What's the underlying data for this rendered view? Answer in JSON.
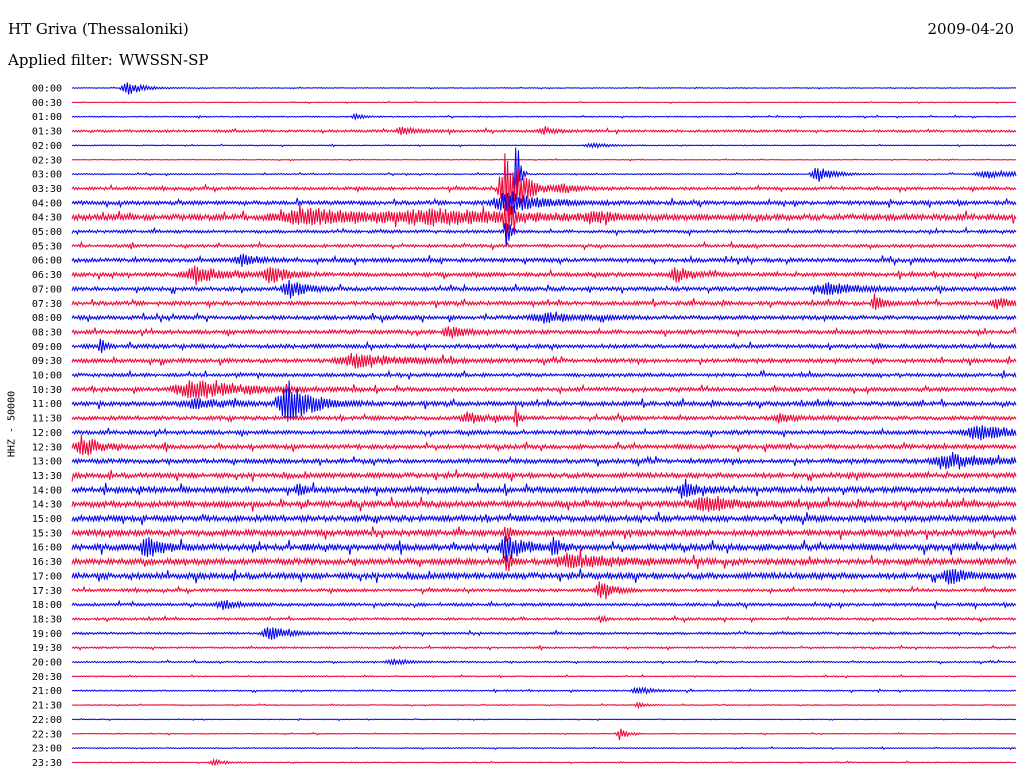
{
  "header": {
    "station": "HT Griva (Thessaloniki)",
    "date": "2009-04-20",
    "filter_label": "Applied filter:",
    "filter_value": "WWSSN-SP",
    "channel": "HHZ - 50000"
  },
  "colors": {
    "blue": "#0000ee",
    "red": "#ee0033"
  },
  "chart_data": {
    "type": "line",
    "title": "HT Griva (Thessaloniki)",
    "ylabel": "HHZ - 50000",
    "grid": false,
    "series": [
      {
        "time": "00:00",
        "color": "blue",
        "noise": 0.4,
        "events": [
          {
            "t": 0.06,
            "amp": 7,
            "w": 0.01
          }
        ]
      },
      {
        "time": "00:30",
        "color": "red",
        "noise": 0.4,
        "events": []
      },
      {
        "time": "01:00",
        "color": "blue",
        "noise": 0.6,
        "events": [
          {
            "t": 0.3,
            "amp": 3,
            "w": 0.005
          }
        ]
      },
      {
        "time": "01:30",
        "color": "red",
        "noise": 1.2,
        "events": [
          {
            "t": 0.35,
            "amp": 4,
            "w": 0.01
          },
          {
            "t": 0.5,
            "amp": 3,
            "w": 0.01
          }
        ]
      },
      {
        "time": "02:00",
        "color": "blue",
        "noise": 0.5,
        "events": [
          {
            "t": 0.55,
            "amp": 3,
            "w": 0.01
          }
        ]
      },
      {
        "time": "02:30",
        "color": "red",
        "noise": 0.4,
        "events": []
      },
      {
        "time": "03:00",
        "color": "blue",
        "noise": 0.6,
        "events": [
          {
            "t": 0.47,
            "amp": 60,
            "w": 0.002
          },
          {
            "t": 0.79,
            "amp": 8,
            "w": 0.01
          },
          {
            "t": 0.97,
            "amp": 4,
            "w": 0.02
          }
        ]
      },
      {
        "time": "03:30",
        "color": "red",
        "noise": 1.5,
        "events": [
          {
            "t": 0.46,
            "amp": 40,
            "w": 0.01
          },
          {
            "t": 0.52,
            "amp": 5,
            "w": 0.01
          }
        ]
      },
      {
        "time": "04:00",
        "color": "blue",
        "noise": 2,
        "events": [
          {
            "t": 0.46,
            "amp": 12,
            "w": 0.02
          }
        ]
      },
      {
        "time": "04:30",
        "color": "red",
        "noise": 3,
        "events": [
          {
            "t": 0.25,
            "amp": 8,
            "w": 0.05
          },
          {
            "t": 0.38,
            "amp": 6,
            "w": 0.06
          },
          {
            "t": 0.46,
            "amp": 30,
            "w": 0.003
          },
          {
            "t": 0.55,
            "amp": 6,
            "w": 0.01
          }
        ]
      },
      {
        "time": "05:00",
        "color": "blue",
        "noise": 1.5,
        "events": [
          {
            "t": 0.46,
            "amp": 25,
            "w": 0.002
          }
        ]
      },
      {
        "time": "05:30",
        "color": "red",
        "noise": 1.5,
        "events": []
      },
      {
        "time": "06:00",
        "color": "blue",
        "noise": 2,
        "events": [
          {
            "t": 0.18,
            "amp": 6,
            "w": 0.01
          }
        ]
      },
      {
        "time": "06:30",
        "color": "red",
        "noise": 2,
        "events": [
          {
            "t": 0.13,
            "amp": 8,
            "w": 0.02
          },
          {
            "t": 0.21,
            "amp": 9,
            "w": 0.01
          },
          {
            "t": 0.64,
            "amp": 8,
            "w": 0.01
          }
        ]
      },
      {
        "time": "07:00",
        "color": "blue",
        "noise": 2,
        "events": [
          {
            "t": 0.23,
            "amp": 10,
            "w": 0.01
          },
          {
            "t": 0.8,
            "amp": 6,
            "w": 0.02
          }
        ]
      },
      {
        "time": "07:30",
        "color": "red",
        "noise": 2,
        "events": [
          {
            "t": 0.85,
            "amp": 10,
            "w": 0.005
          },
          {
            "t": 0.98,
            "amp": 5,
            "w": 0.01
          }
        ]
      },
      {
        "time": "08:00",
        "color": "blue",
        "noise": 2,
        "events": [
          {
            "t": 0.5,
            "amp": 5,
            "w": 0.02
          }
        ]
      },
      {
        "time": "08:30",
        "color": "red",
        "noise": 2,
        "events": [
          {
            "t": 0.4,
            "amp": 6,
            "w": 0.01
          }
        ]
      },
      {
        "time": "09:00",
        "color": "blue",
        "noise": 2,
        "events": [
          {
            "t": 0.03,
            "amp": 8,
            "w": 0.003
          }
        ]
      },
      {
        "time": "09:30",
        "color": "red",
        "noise": 2,
        "events": [
          {
            "t": 0.3,
            "amp": 7,
            "w": 0.03
          }
        ]
      },
      {
        "time": "10:00",
        "color": "blue",
        "noise": 1.8,
        "events": []
      },
      {
        "time": "10:30",
        "color": "red",
        "noise": 2,
        "events": [
          {
            "t": 0.13,
            "amp": 10,
            "w": 0.03
          }
        ]
      },
      {
        "time": "11:00",
        "color": "blue",
        "noise": 2.2,
        "events": [
          {
            "t": 0.23,
            "amp": 22,
            "w": 0.015
          },
          {
            "t": 0.13,
            "amp": 5,
            "w": 0.02
          }
        ]
      },
      {
        "time": "11:30",
        "color": "red",
        "noise": 2,
        "events": [
          {
            "t": 0.42,
            "amp": 6,
            "w": 0.01
          },
          {
            "t": 0.47,
            "amp": 12,
            "w": 0.002
          },
          {
            "t": 0.75,
            "amp": 4,
            "w": 0.01
          }
        ]
      },
      {
        "time": "12:00",
        "color": "blue",
        "noise": 2,
        "events": [
          {
            "t": 0.96,
            "amp": 8,
            "w": 0.02
          }
        ]
      },
      {
        "time": "12:30",
        "color": "red",
        "noise": 2.2,
        "events": [
          {
            "t": 0.01,
            "amp": 12,
            "w": 0.01
          }
        ]
      },
      {
        "time": "13:00",
        "color": "blue",
        "noise": 2.2,
        "events": [
          {
            "t": 0.93,
            "amp": 6,
            "w": 0.03
          }
        ]
      },
      {
        "time": "13:30",
        "color": "red",
        "noise": 2.5,
        "events": []
      },
      {
        "time": "14:00",
        "color": "blue",
        "noise": 2.8,
        "events": [
          {
            "t": 0.24,
            "amp": 7,
            "w": 0.005
          },
          {
            "t": 0.65,
            "amp": 6,
            "w": 0.01
          }
        ]
      },
      {
        "time": "14:30",
        "color": "red",
        "noise": 3,
        "events": [
          {
            "t": 0.67,
            "amp": 7,
            "w": 0.02
          }
        ]
      },
      {
        "time": "15:00",
        "color": "blue",
        "noise": 3,
        "events": []
      },
      {
        "time": "15:30",
        "color": "red",
        "noise": 3,
        "events": [
          {
            "t": 0.46,
            "amp": 10,
            "w": 0.003
          }
        ]
      },
      {
        "time": "16:00",
        "color": "blue",
        "noise": 3.2,
        "events": [
          {
            "t": 0.08,
            "amp": 10,
            "w": 0.01
          },
          {
            "t": 0.46,
            "amp": 14,
            "w": 0.01
          },
          {
            "t": 0.51,
            "amp": 8,
            "w": 0.005
          }
        ]
      },
      {
        "time": "16:30",
        "color": "red",
        "noise": 3,
        "events": [
          {
            "t": 0.46,
            "amp": 14,
            "w": 0.003
          },
          {
            "t": 0.53,
            "amp": 6,
            "w": 0.03
          }
        ]
      },
      {
        "time": "17:00",
        "color": "blue",
        "noise": 3,
        "events": [
          {
            "t": 0.93,
            "amp": 9,
            "w": 0.01
          }
        ]
      },
      {
        "time": "17:30",
        "color": "red",
        "noise": 1.5,
        "events": [
          {
            "t": 0.56,
            "amp": 10,
            "w": 0.008
          }
        ]
      },
      {
        "time": "18:00",
        "color": "blue",
        "noise": 1.5,
        "events": [
          {
            "t": 0.16,
            "amp": 5,
            "w": 0.01
          }
        ]
      },
      {
        "time": "18:30",
        "color": "red",
        "noise": 1.2,
        "events": [
          {
            "t": 0.56,
            "amp": 4,
            "w": 0.003
          }
        ]
      },
      {
        "time": "19:00",
        "color": "blue",
        "noise": 1.2,
        "events": [
          {
            "t": 0.21,
            "amp": 7,
            "w": 0.012
          }
        ]
      },
      {
        "time": "19:30",
        "color": "red",
        "noise": 0.9,
        "events": []
      },
      {
        "time": "20:00",
        "color": "blue",
        "noise": 0.8,
        "events": [
          {
            "t": 0.34,
            "amp": 3,
            "w": 0.01
          }
        ]
      },
      {
        "time": "20:30",
        "color": "red",
        "noise": 0.6,
        "events": []
      },
      {
        "time": "21:00",
        "color": "blue",
        "noise": 0.7,
        "events": [
          {
            "t": 0.6,
            "amp": 4,
            "w": 0.01
          }
        ]
      },
      {
        "time": "21:30",
        "color": "red",
        "noise": 0.5,
        "events": [
          {
            "t": 0.6,
            "amp": 3,
            "w": 0.005
          }
        ]
      },
      {
        "time": "22:00",
        "color": "blue",
        "noise": 0.4,
        "events": []
      },
      {
        "time": "22:30",
        "color": "red",
        "noise": 0.5,
        "events": [
          {
            "t": 0.58,
            "amp": 6,
            "w": 0.005
          }
        ]
      },
      {
        "time": "23:00",
        "color": "blue",
        "noise": 0.5,
        "events": []
      },
      {
        "time": "23:30",
        "color": "red",
        "noise": 0.5,
        "events": [
          {
            "t": 0.15,
            "amp": 3,
            "w": 0.008
          }
        ]
      }
    ]
  }
}
